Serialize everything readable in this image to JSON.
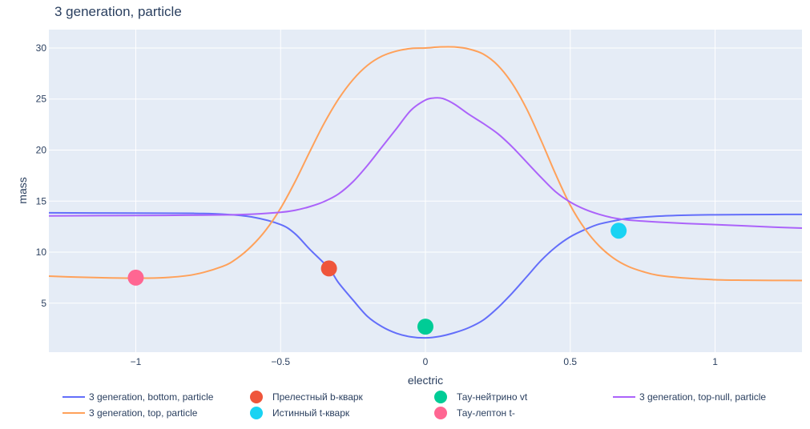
{
  "chart_data": {
    "type": "line",
    "title": "3 generation, particle",
    "xlabel": "electric",
    "ylabel": "mass",
    "xlim": [
      -1.3,
      1.3
    ],
    "ylim": [
      0.2,
      31.8
    ],
    "x_ticks": [
      {
        "value": -1,
        "label": "−1"
      },
      {
        "value": -0.5,
        "label": "−0.5"
      },
      {
        "value": 0,
        "label": "0"
      },
      {
        "value": 0.5,
        "label": "0.5"
      },
      {
        "value": 1,
        "label": "1"
      }
    ],
    "y_ticks": [
      {
        "value": 5,
        "label": "5"
      },
      {
        "value": 10,
        "label": "10"
      },
      {
        "value": 15,
        "label": "15"
      },
      {
        "value": 20,
        "label": "20"
      },
      {
        "value": 25,
        "label": "25"
      },
      {
        "value": 30,
        "label": "30"
      }
    ],
    "grid": true,
    "legend_position": "bottom",
    "series": [
      {
        "name": "3 generation, bottom, particle",
        "mode": "lines",
        "color": "#636efa",
        "x": [
          -1.3,
          -1.0,
          -0.8,
          -0.7,
          -0.6,
          -0.5,
          -0.45,
          -0.4,
          -0.333,
          -0.3,
          -0.25,
          -0.2,
          -0.15,
          -0.1,
          -0.05,
          0.0,
          0.05,
          0.1,
          0.15,
          0.2,
          0.25,
          0.3,
          0.35,
          0.4,
          0.45,
          0.5,
          0.55,
          0.6,
          0.667,
          0.7,
          0.8,
          0.9,
          1.0,
          1.1,
          1.2,
          1.3
        ],
        "y": [
          13.85,
          13.82,
          13.8,
          13.72,
          13.45,
          12.7,
          11.8,
          10.3,
          8.4,
          7.0,
          5.3,
          3.7,
          2.7,
          2.05,
          1.7,
          1.6,
          1.75,
          2.1,
          2.6,
          3.35,
          4.55,
          6.0,
          7.6,
          9.2,
          10.5,
          11.5,
          12.2,
          12.75,
          13.15,
          13.3,
          13.52,
          13.62,
          13.66,
          13.68,
          13.69,
          13.7
        ]
      },
      {
        "name": "3 generation, top, particle",
        "mode": "lines",
        "color": "#ffa15a",
        "x": [
          -1.3,
          -1.2,
          -1.1,
          -1.0,
          -0.9,
          -0.8,
          -0.7,
          -0.65,
          -0.6,
          -0.55,
          -0.5,
          -0.45,
          -0.4,
          -0.35,
          -0.3,
          -0.25,
          -0.2,
          -0.15,
          -0.1,
          -0.05,
          0.0,
          0.05,
          0.1,
          0.15,
          0.2,
          0.25,
          0.3,
          0.35,
          0.4,
          0.45,
          0.5,
          0.55,
          0.6,
          0.65,
          0.7,
          0.75,
          0.8,
          0.9,
          1.0,
          1.1,
          1.2,
          1.3
        ],
        "y": [
          7.65,
          7.55,
          7.48,
          7.45,
          7.5,
          7.8,
          8.6,
          9.4,
          10.6,
          12.2,
          14.3,
          16.9,
          19.8,
          22.6,
          25.0,
          26.9,
          28.3,
          29.2,
          29.7,
          29.95,
          30.0,
          30.1,
          30.1,
          29.9,
          29.4,
          28.3,
          26.5,
          24.0,
          20.9,
          17.6,
          14.6,
          12.3,
          10.6,
          9.4,
          8.6,
          8.1,
          7.75,
          7.45,
          7.3,
          7.25,
          7.23,
          7.22
        ]
      },
      {
        "name": "3 generation, top-null, particle",
        "mode": "lines",
        "color": "#ab63fa",
        "x": [
          -1.3,
          -1.1,
          -0.9,
          -0.7,
          -0.6,
          -0.5,
          -0.45,
          -0.4,
          -0.35,
          -0.3,
          -0.25,
          -0.2,
          -0.15,
          -0.1,
          -0.05,
          0.0,
          0.03,
          0.06,
          0.1,
          0.15,
          0.2,
          0.25,
          0.3,
          0.35,
          0.4,
          0.45,
          0.5,
          0.55,
          0.6,
          0.65,
          0.7,
          0.8,
          0.9,
          1.0,
          1.1,
          1.2,
          1.3
        ],
        "y": [
          13.55,
          13.58,
          13.6,
          13.65,
          13.72,
          13.9,
          14.1,
          14.45,
          14.95,
          15.7,
          16.9,
          18.5,
          20.3,
          22.1,
          23.9,
          24.9,
          25.1,
          25.05,
          24.5,
          23.5,
          22.6,
          21.6,
          20.3,
          18.8,
          17.3,
          15.9,
          14.9,
          14.2,
          13.7,
          13.35,
          13.15,
          12.95,
          12.8,
          12.7,
          12.58,
          12.45,
          12.35
        ]
      },
      {
        "name": "Прелестный b-кварк",
        "mode": "markers",
        "color": "#ef553b",
        "x": [
          -0.333
        ],
        "y": [
          8.4
        ]
      },
      {
        "name": "Истинный t-кварк",
        "mode": "markers",
        "color": "#19d3f3",
        "x": [
          0.667
        ],
        "y": [
          12.1
        ]
      },
      {
        "name": "Тау-нейтрино vt",
        "mode": "markers",
        "color": "#00cc96",
        "x": [
          0
        ],
        "y": [
          2.7
        ]
      },
      {
        "name": "Тау-лептон t-",
        "mode": "markers",
        "color": "#ff6692",
        "x": [
          -1
        ],
        "y": [
          7.5
        ]
      }
    ],
    "legend_order": [
      "3 generation, bottom, particle",
      "3 generation, top, particle",
      "Прелестный b-кварк",
      "Истинный t-кварк",
      "Тау-нейтрино vt",
      "Тау-лептон t-",
      "3 generation, top-null, particle"
    ]
  }
}
